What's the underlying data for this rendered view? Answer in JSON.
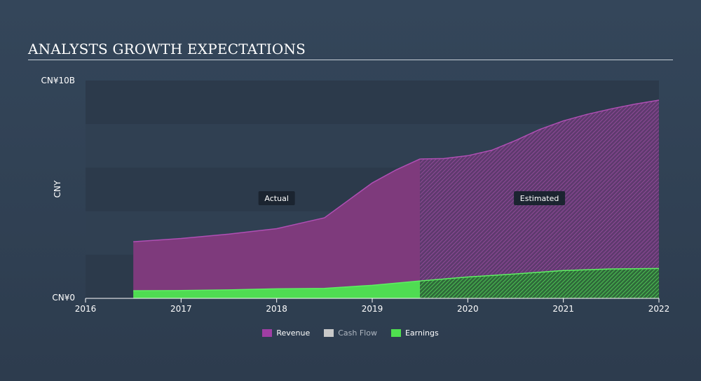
{
  "header": {
    "title": "ANALYSTS GROWTH EXPECTATIONS"
  },
  "chart_data": {
    "type": "area",
    "title": "ANALYSTS GROWTH EXPECTATIONS",
    "ylabel": "CNY",
    "xlabel": "",
    "y_ticks": [
      "CN¥10B",
      "CN¥0"
    ],
    "ylim": [
      0,
      10
    ],
    "x_ticks": [
      "2016",
      "2017",
      "2018",
      "2019",
      "2020",
      "2021",
      "2022"
    ],
    "xlim": [
      2016.0,
      2022.0
    ],
    "actual_label": "Actual",
    "estimated_label": "Estimated",
    "split_x": 2019.5,
    "series": [
      {
        "name": "Revenue",
        "color": "#a03ea4",
        "points": [
          [
            2016.5,
            2.6
          ],
          [
            2017.0,
            2.75
          ],
          [
            2017.5,
            2.95
          ],
          [
            2018.0,
            3.2
          ],
          [
            2018.25,
            3.45
          ],
          [
            2018.5,
            3.7
          ],
          [
            2018.75,
            4.5
          ],
          [
            2019.0,
            5.3
          ],
          [
            2019.25,
            5.9
          ],
          [
            2019.5,
            6.4
          ],
          [
            2019.75,
            6.42
          ],
          [
            2020.0,
            6.55
          ],
          [
            2020.25,
            6.8
          ],
          [
            2020.5,
            7.25
          ],
          [
            2020.75,
            7.75
          ],
          [
            2021.0,
            8.15
          ],
          [
            2021.25,
            8.45
          ],
          [
            2021.5,
            8.7
          ],
          [
            2021.75,
            8.92
          ],
          [
            2022.0,
            9.1
          ]
        ]
      },
      {
        "name": "Cash Flow",
        "color": "#c9c9c9",
        "points": []
      },
      {
        "name": "Earnings",
        "color": "#4fe04f",
        "points": [
          [
            2016.5,
            0.35
          ],
          [
            2017.0,
            0.36
          ],
          [
            2017.5,
            0.39
          ],
          [
            2018.0,
            0.44
          ],
          [
            2018.5,
            0.46
          ],
          [
            2019.0,
            0.6
          ],
          [
            2019.5,
            0.8
          ],
          [
            2020.0,
            0.98
          ],
          [
            2020.5,
            1.12
          ],
          [
            2021.0,
            1.28
          ],
          [
            2021.5,
            1.35
          ],
          [
            2022.0,
            1.37
          ]
        ]
      }
    ]
  }
}
